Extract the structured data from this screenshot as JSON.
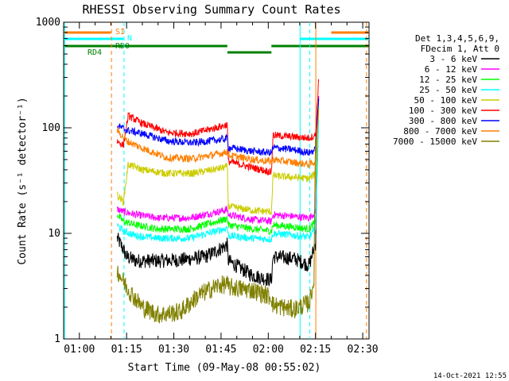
{
  "chart_data": {
    "type": "line",
    "title": "RHESSI Observing Summary Count Rates",
    "xlabel": "Start Time (09-May-08 00:55:02)",
    "ylabel": "Count Rate (s⁻¹ detector⁻¹)",
    "yscale": "log",
    "ylim": [
      1,
      1000
    ],
    "xlim_minutes": [
      55,
      152
    ],
    "x_ticks": [
      "01:00",
      "01:15",
      "01:30",
      "01:45",
      "02:00",
      "02:15",
      "02:30"
    ],
    "y_ticks": [
      "1",
      "10",
      "100",
      "1000"
    ],
    "grid": false,
    "legend_position": "right",
    "legend_header": [
      "Det 1,3,4,5,6,9,",
      "FDecim 1, Att 0"
    ],
    "timestamp": "14-Oct-2021 12:55",
    "flags": [
      {
        "label": "SI",
        "color": "#ff7f00",
        "segments": [
          [
            55,
            70
          ],
          [
            140,
            152
          ]
        ]
      },
      {
        "label": "N",
        "color": "#00ffff",
        "segments": [
          [
            55,
            74
          ],
          [
            130,
            152
          ]
        ]
      },
      {
        "label": "RD0",
        "color": "#008000",
        "segments": [
          [
            55,
            107
          ],
          [
            121,
            152
          ]
        ]
      },
      {
        "label": "RD4",
        "color": "#008000",
        "segments": [
          [
            107,
            121
          ]
        ]
      }
    ],
    "vlines": [
      {
        "x": 55.3,
        "color": "#00ffff",
        "style": "solid"
      },
      {
        "x": 70.2,
        "color": "#ff7f00",
        "style": "dashed"
      },
      {
        "x": 74.2,
        "color": "#00ffff",
        "style": "dashed"
      },
      {
        "x": 130.1,
        "color": "#00ffff",
        "style": "solid"
      },
      {
        "x": 133.2,
        "color": "#00ffff",
        "style": "dashed"
      },
      {
        "x": 135.1,
        "color": "#ff7f00",
        "style": "solid"
      },
      {
        "x": 151.2,
        "color": "#ff7f00",
        "style": "dashed"
      }
    ],
    "series": [
      {
        "name": "3 - 6 keV",
        "color": "#000000",
        "points": [
          [
            72,
            9.0
          ],
          [
            73,
            8.0
          ],
          [
            74,
            7.0
          ],
          [
            75,
            6.0
          ],
          [
            78,
            5.5
          ],
          [
            85,
            5.5
          ],
          [
            92,
            5.6
          ],
          [
            100,
            6.0
          ],
          [
            106,
            7.5
          ],
          [
            107,
            7.8
          ],
          [
            107.3,
            5.5
          ],
          [
            115,
            4.0
          ],
          [
            121,
            3.6
          ],
          [
            121.5,
            6.0
          ],
          [
            128,
            5.8
          ],
          [
            133,
            5.0
          ],
          [
            135,
            8.0
          ],
          [
            136,
            200
          ]
        ]
      },
      {
        "name": "6 - 12 keV",
        "color": "#ff00ff",
        "points": [
          [
            72,
            17
          ],
          [
            74,
            16
          ],
          [
            78,
            15
          ],
          [
            85,
            14
          ],
          [
            95,
            14
          ],
          [
            106,
            16.5
          ],
          [
            107,
            17
          ],
          [
            107.3,
            15
          ],
          [
            115,
            13.5
          ],
          [
            121,
            13
          ],
          [
            121.5,
            15
          ],
          [
            128,
            14.5
          ],
          [
            133,
            14
          ],
          [
            135,
            16
          ],
          [
            136,
            200
          ]
        ]
      },
      {
        "name": "12 - 25 keV",
        "color": "#00ff00",
        "points": [
          [
            72,
            15
          ],
          [
            74,
            13
          ],
          [
            78,
            12
          ],
          [
            85,
            11
          ],
          [
            95,
            11
          ],
          [
            106,
            13.5
          ],
          [
            107,
            14
          ],
          [
            107.3,
            12
          ],
          [
            115,
            11
          ],
          [
            121,
            10.5
          ],
          [
            121.5,
            12
          ],
          [
            128,
            11.5
          ],
          [
            133,
            11
          ],
          [
            135,
            13
          ],
          [
            136,
            160
          ]
        ]
      },
      {
        "name": "25 - 50 keV",
        "color": "#00ffff",
        "points": [
          [
            72,
            12
          ],
          [
            74,
            10.5
          ],
          [
            78,
            9.5
          ],
          [
            85,
            9.0
          ],
          [
            95,
            9.0
          ],
          [
            106,
            11
          ],
          [
            107,
            11.5
          ],
          [
            107.3,
            9.5
          ],
          [
            115,
            9.0
          ],
          [
            121,
            8.8
          ],
          [
            121.5,
            10
          ],
          [
            128,
            9.6
          ],
          [
            133,
            9.2
          ],
          [
            135,
            11
          ],
          [
            136,
            120
          ]
        ]
      },
      {
        "name": "50 - 100 keV",
        "color": "#cccc00",
        "points": [
          [
            72,
            23
          ],
          [
            74,
            20
          ],
          [
            75.5,
            45
          ],
          [
            80,
            40
          ],
          [
            88,
            37
          ],
          [
            96,
            37
          ],
          [
            106,
            42
          ],
          [
            107,
            43
          ],
          [
            107.3,
            18
          ],
          [
            115,
            16.5
          ],
          [
            121,
            16
          ],
          [
            121.5,
            35
          ],
          [
            128,
            34
          ],
          [
            133,
            33
          ],
          [
            135,
            37
          ],
          [
            136,
            150
          ]
        ]
      },
      {
        "name": "100 - 300 keV",
        "color": "#ff0000",
        "points": [
          [
            72,
            75
          ],
          [
            74,
            68
          ],
          [
            75.5,
            130
          ],
          [
            80,
            110
          ],
          [
            88,
            90
          ],
          [
            96,
            88
          ],
          [
            106,
            105
          ],
          [
            107,
            108
          ],
          [
            107.3,
            48
          ],
          [
            115,
            42
          ],
          [
            121,
            38
          ],
          [
            121.5,
            85
          ],
          [
            128,
            82
          ],
          [
            133,
            80
          ],
          [
            135,
            85
          ],
          [
            136,
            280
          ]
        ]
      },
      {
        "name": "300 - 800 keV",
        "color": "#0000ff",
        "points": [
          [
            72,
            105
          ],
          [
            75,
            95
          ],
          [
            80,
            88
          ],
          [
            88,
            75
          ],
          [
            96,
            72
          ],
          [
            106,
            78
          ],
          [
            107,
            80
          ],
          [
            107.3,
            65
          ],
          [
            115,
            60
          ],
          [
            121,
            58
          ],
          [
            121.5,
            65
          ],
          [
            128,
            62
          ],
          [
            133,
            58
          ],
          [
            135,
            62
          ],
          [
            136,
            190
          ]
        ]
      },
      {
        "name": "800 - 7000 keV",
        "color": "#ff7f00",
        "points": [
          [
            72,
            95
          ],
          [
            75,
            75
          ],
          [
            80,
            64
          ],
          [
            88,
            52
          ],
          [
            96,
            51
          ],
          [
            106,
            58
          ],
          [
            107,
            60
          ],
          [
            107.3,
            55
          ],
          [
            115,
            50
          ],
          [
            121,
            48
          ],
          [
            121.5,
            50
          ],
          [
            128,
            47
          ],
          [
            133,
            45
          ],
          [
            135,
            48
          ],
          [
            136,
            150
          ]
        ]
      },
      {
        "name": "7000 - 15000 keV",
        "color": "#808000",
        "points": [
          [
            72,
            4.5
          ],
          [
            74,
            3.5
          ],
          [
            76,
            2.8
          ],
          [
            80,
            2.0
          ],
          [
            85,
            1.7
          ],
          [
            92,
            1.8
          ],
          [
            98,
            2.6
          ],
          [
            104,
            3.2
          ],
          [
            107,
            3.3
          ],
          [
            107.3,
            3.1
          ],
          [
            115,
            2.9
          ],
          [
            121,
            2.5
          ],
          [
            121.5,
            2.1
          ],
          [
            128,
            1.9
          ],
          [
            133,
            2.2
          ],
          [
            134.5,
            3.5
          ],
          [
            135,
            80
          ]
        ]
      }
    ]
  }
}
